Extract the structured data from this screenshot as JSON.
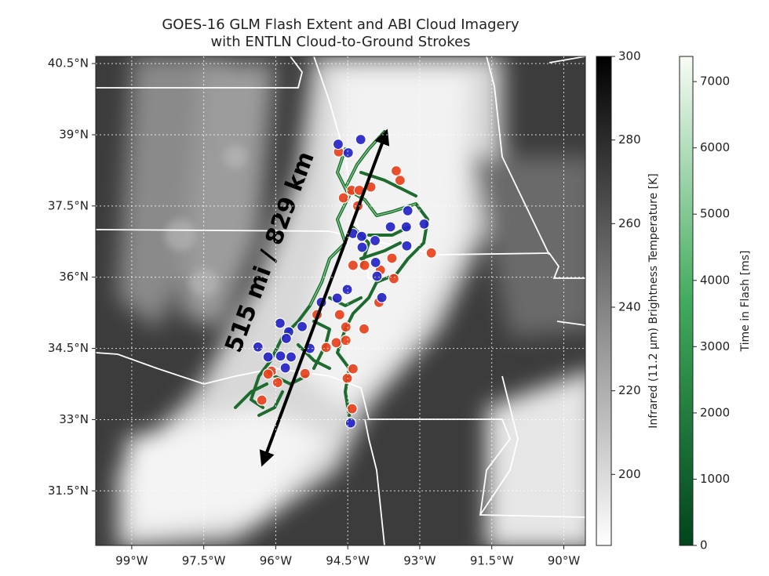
{
  "chart_data": {
    "type": "map",
    "title": [
      "GOES-16 GLM Flash Extent and ABI Cloud Imagery",
      "with ENTLN Cloud-to-Ground Strokes"
    ],
    "annotation": "515 mi / 829 km",
    "xlim": [
      -99.75,
      -89.55
    ],
    "xticks": [
      {
        "value": -99,
        "label": "99°W"
      },
      {
        "value": -97.5,
        "label": "97.5°W"
      },
      {
        "value": -96,
        "label": "96°W"
      },
      {
        "value": -94.5,
        "label": "94.5°W"
      },
      {
        "value": -93,
        "label": "93°W"
      },
      {
        "value": -91.5,
        "label": "91.5°W"
      },
      {
        "value": -90,
        "label": "90°W"
      }
    ],
    "ylim": [
      30.35,
      40.65
    ],
    "yticks": [
      {
        "value": 31.5,
        "label": "31.5°N"
      },
      {
        "value": 33,
        "label": "33°N"
      },
      {
        "value": 34.5,
        "label": "34.5°N"
      },
      {
        "value": 36,
        "label": "36°N"
      },
      {
        "value": 37.5,
        "label": "37.5°N"
      },
      {
        "value": 39,
        "label": "39°N"
      },
      {
        "value": 40.5,
        "label": "40.5°N"
      }
    ],
    "grid": true,
    "series": [
      {
        "color": "#e8401c",
        "x": [
          -94.69,
          -93.49,
          -93.41,
          -94.42,
          -94.26,
          -94.02,
          -94.59,
          -94.29,
          -92.76,
          -93.58,
          -94.39,
          -94.15,
          -93.82,
          -93.54,
          -93.85,
          -95.14,
          -94.67,
          -94.54,
          -94.16,
          -94.95,
          -94.74,
          -94.54,
          -95.39,
          -96.09,
          -96.16,
          -95.96,
          -94.39,
          -94.51,
          -96.29,
          -94.41
        ],
        "y": [
          38.64,
          38.24,
          38.04,
          37.83,
          37.83,
          37.9,
          37.67,
          37.5,
          36.51,
          36.4,
          36.25,
          36.25,
          36.15,
          35.97,
          35.47,
          35.21,
          35.21,
          34.95,
          34.91,
          34.52,
          34.62,
          34.67,
          33.97,
          34.02,
          33.96,
          33.78,
          34.07,
          33.87,
          33.41,
          33.23
        ]
      },
      {
        "color": "#2424c8",
        "x": [
          -94.7,
          -94.23,
          -94.49,
          -93.25,
          -93.61,
          -93.28,
          -92.91,
          -94.39,
          -94.21,
          -93.93,
          -94.2,
          -93.27,
          -93.92,
          -93.89,
          -93.79,
          -94.51,
          -94.72,
          -95.05,
          -95.91,
          -95.45,
          -95.73,
          -95.78,
          -96.37,
          -95.9,
          -95.68,
          -96.16,
          -95.8,
          -95.29,
          -94.44
        ],
        "y": [
          38.8,
          38.9,
          38.62,
          37.4,
          37.06,
          37.06,
          37.12,
          36.92,
          36.86,
          36.77,
          36.63,
          36.66,
          36.31,
          36.02,
          35.57,
          35.74,
          35.56,
          35.47,
          35.03,
          34.96,
          34.85,
          34.71,
          34.53,
          34.34,
          34.32,
          34.32,
          34.09,
          34.5,
          32.93
        ]
      }
    ],
    "colorbars": [
      {
        "label": "Infrared (11.2 μm) Brightness Temperature [K]",
        "lim": [
          183,
          300
        ],
        "ticks": [
          200,
          220,
          240,
          260,
          280,
          300
        ],
        "colors": [
          "#ffffff",
          "#000000"
        ]
      },
      {
        "label": "Time in Flash [ms]",
        "lim": [
          0,
          7380
        ],
        "ticks": [
          0,
          1000,
          2000,
          3000,
          4000,
          5000,
          6000,
          7000
        ],
        "colors": [
          "#00441b",
          "#41ab5d",
          "#f7fcf5"
        ]
      }
    ]
  }
}
